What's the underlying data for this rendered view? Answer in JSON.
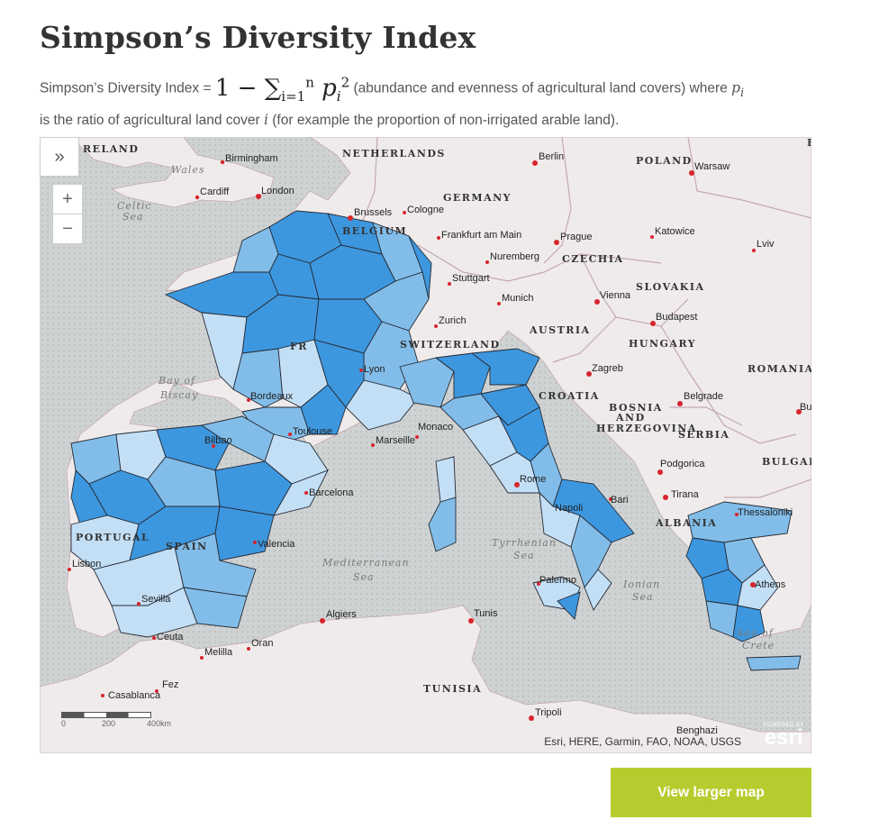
{
  "page": {
    "title": "Simpson’s Diversity Index",
    "description": {
      "prefix": "Simpson’s Diversity Index = ",
      "formula_lead": "1 − ∑",
      "formula_sub": "i=1",
      "formula_sup": "n",
      "formula_var": "p",
      "formula_var_sub": "i",
      "formula_var_sup": "2",
      "middle": " (abundance and evenness of agricultural land covers) where ",
      "var_p": "p",
      "var_p_sub": "i",
      "line2a": " is the ratio of agricultural land cover ",
      "var_i": "i",
      "line2b": " (for example the proportion of non-irrigated arable land)."
    },
    "button_label": "View larger map"
  },
  "map": {
    "expand_icon": "»",
    "zoom_in": "+",
    "zoom_out": "−",
    "attribution": "Esri, HERE, Garmin, FAO, NOAA, USGS",
    "logo_top": "POWERED BY",
    "logo_text": "esri",
    "scale": {
      "s0": "0",
      "s1": "200",
      "s2": "400km"
    },
    "colors": {
      "sea": "#cfd2d3",
      "land": "#efebeb",
      "class_high": "#3d97df",
      "class_mid": "#82bde9",
      "class_low": "#c3dff6",
      "border": "#262a33",
      "city_dot": "#d8242c"
    },
    "country_labels": {
      "ireland": "RELAND",
      "netherlands": "NETHERLANDS",
      "germany": "GERMANY",
      "belgium": "BELGIUM",
      "poland": "POLAND",
      "czechia": "CZECHIA",
      "slovakia": "SLOVAKIA",
      "austria": "AUSTRIA",
      "hungary": "HUNGARY",
      "switzerland": "SWITZERLAND",
      "romania": "ROMANIA",
      "croatia": "CROATIA",
      "bosnia1": "BOSNIA",
      "bosnia2": "AND",
      "bosnia3": "HERZEGOVINA",
      "serbia": "SERBIA",
      "bulgaria": "BULGARIA",
      "albania": "ALBANIA",
      "spain": "SPAIN",
      "portugal": "PORTUGAL",
      "france": "FR",
      "tunisia": "TUNISIA",
      "edge_b": "B"
    },
    "sea_labels": {
      "wales": "Wales",
      "celtic1": "Celtic",
      "celtic2": "Sea",
      "biscay1": "Bay of",
      "biscay2": "Biscay",
      "med1": "Mediterranean",
      "med2": "Sea",
      "tyr1": "Tyrrhenian",
      "tyr2": "Sea",
      "ion1": "Ionian",
      "ion2": "Sea",
      "crete1": "Sea of",
      "crete2": "Crete"
    },
    "cities": {
      "birmingham": "Birmingham",
      "cardiff": "Cardiff",
      "london": "London",
      "brussels": "Brussels",
      "cologne": "Cologne",
      "berlin": "Berlin",
      "warsaw": "Warsaw",
      "frankfurt": "Frankfurt am Main",
      "prague": "Prague",
      "katowice": "Katowice",
      "lviv": "Lviv",
      "nuremberg": "Nuremberg",
      "stuttgart": "Stuttgart",
      "munich": "Munich",
      "vienna": "Vienna",
      "budapest": "Budapest",
      "zurich": "Zurich",
      "zagreb": "Zagreb",
      "belgrade": "Belgrade",
      "lyon": "Lyon",
      "bordeaux": "Bordeaux",
      "toulouse": "Toulouse",
      "marseille": "Marseille",
      "monaco": "Monaco",
      "bilbao": "Bilbao",
      "barcelona": "Barcelona",
      "valencia": "Valencia",
      "lisbon": "Lisbon",
      "sevilla": "Sevilla",
      "ceuta": "Ceuta",
      "melilla": "Melilla",
      "oran": "Oran",
      "algiers": "Algiers",
      "tunis": "Tunis",
      "palermo": "Palermo",
      "rome": "Rome",
      "bari": "Bari",
      "napoli": "Napoli",
      "tirana": "Tirana",
      "podgorica": "Podgorica",
      "thessaloniki": "Thessaloniki",
      "athens": "Athens",
      "fez": "Fez",
      "casablanca": "Casablanca",
      "tripoli": "Tripoli",
      "benghazi": "Benghazi",
      "bu": "Bu"
    }
  }
}
